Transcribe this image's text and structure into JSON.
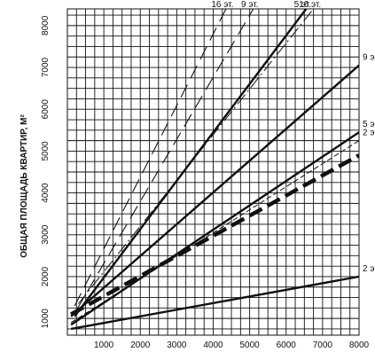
{
  "chart_data": {
    "type": "line",
    "title": "",
    "xlabel": "",
    "ylabel": "ОБЩАЯ ПЛОЩАДЬ КВАРТИР, М²",
    "xlim": [
      0,
      8000
    ],
    "ylim": [
      600,
      8400
    ],
    "xticks": [
      1000,
      2000,
      3000,
      4000,
      5000,
      6000,
      7000,
      8000
    ],
    "yticks": [
      1000,
      2000,
      3000,
      4000,
      5000,
      6000,
      7000,
      8000
    ],
    "grid": true,
    "series": [
      {
        "style": "solid",
        "points": [
          [
            100,
            750
          ],
          [
            8000,
            2000
          ]
        ],
        "label": "2 э"
      },
      {
        "style": "solid",
        "points": [
          [
            100,
            850
          ],
          [
            8000,
            5450
          ]
        ],
        "label": "5 э"
      },
      {
        "style": "solid",
        "points": [
          [
            100,
            1050
          ],
          [
            8000,
            7050
          ]
        ],
        "label": "9 э"
      },
      {
        "style": "solid",
        "points": [
          [
            200,
            1050
          ],
          [
            6550,
            8400
          ]
        ],
        "label": "5 эт."
      },
      {
        "style": "thin-dashed",
        "points": [
          [
            100,
            900
          ],
          [
            8000,
            5250
          ]
        ],
        "label": "2 э"
      },
      {
        "style": "thick-dashed",
        "points": [
          [
            100,
            1100
          ],
          [
            8000,
            4900
          ]
        ],
        "label": ""
      },
      {
        "style": "long-dashed",
        "points": [
          [
            200,
            1300
          ],
          [
            4350,
            8400
          ]
        ],
        "label": "16 эт."
      },
      {
        "style": "long-dashed",
        "points": [
          [
            250,
            1200
          ],
          [
            5100,
            8400
          ]
        ],
        "label": "9 эт."
      },
      {
        "style": "dash-dot",
        "points": [
          [
            300,
            1350
          ],
          [
            6750,
            8400
          ]
        ],
        "label": "16 эт."
      }
    ]
  }
}
